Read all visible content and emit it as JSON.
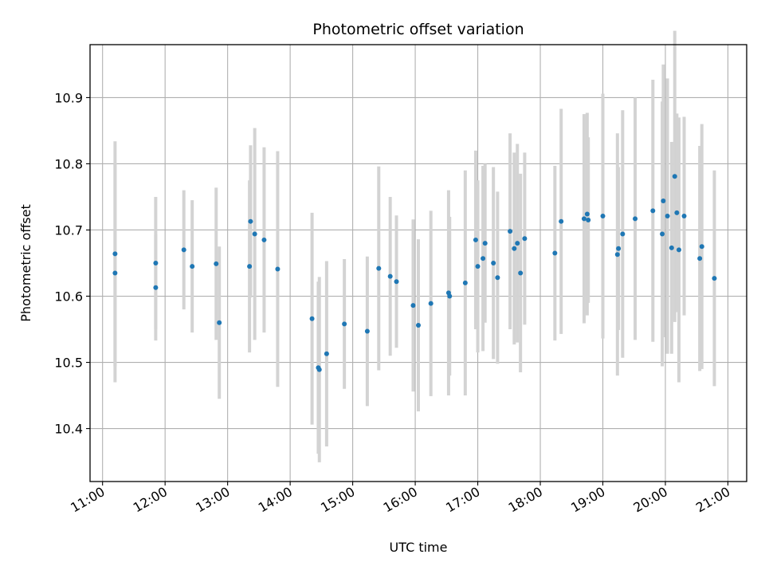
{
  "chart_data": {
    "type": "scatter",
    "title": "Photometric offset variation",
    "xlabel": "UTC time",
    "ylabel": "Photometric offset",
    "xlim": [
      "10:48",
      "21:18"
    ],
    "ylim": [
      10.32,
      10.98
    ],
    "x_ticks": [
      "11:00",
      "12:00",
      "13:00",
      "14:00",
      "15:00",
      "16:00",
      "17:00",
      "18:00",
      "19:00",
      "20:00",
      "21:00"
    ],
    "y_ticks": [
      10.4,
      10.5,
      10.6,
      10.7,
      10.8,
      10.9
    ],
    "grid": true,
    "point_color": "#1f77b4",
    "errorbar_color": "#d3d3d3",
    "series": [
      {
        "x": [
          "11:12",
          "11:12",
          "11:51",
          "11:51",
          "12:18",
          "12:26",
          "12:49",
          "12:52",
          "13:21",
          "13:22",
          "13:26",
          "13:35",
          "13:48",
          "14:21",
          "14:27",
          "14:28",
          "14:35",
          "14:52",
          "15:14",
          "15:25",
          "15:36",
          "15:42",
          "15:58",
          "16:03",
          "16:15",
          "16:32",
          "16:33",
          "16:48",
          "16:58",
          "17:00",
          "17:05",
          "17:07",
          "17:15",
          "17:19",
          "17:31",
          "17:35",
          "17:38",
          "17:41",
          "17:45",
          "18:14",
          "18:20",
          "18:42",
          "18:45",
          "18:46",
          "19:00",
          "19:14",
          "19:15",
          "19:19",
          "19:31",
          "19:48",
          "19:57",
          "19:58",
          "20:02",
          "20:06",
          "20:09",
          "20:11",
          "20:13",
          "20:18",
          "20:33",
          "20:35",
          "20:47"
        ],
        "y": [
          10.664,
          10.635,
          10.65,
          10.613,
          10.67,
          10.645,
          10.649,
          10.56,
          10.645,
          10.713,
          10.694,
          10.685,
          10.641,
          10.566,
          10.492,
          10.489,
          10.513,
          10.558,
          10.547,
          10.642,
          10.63,
          10.622,
          10.586,
          10.556,
          10.589,
          10.605,
          10.6,
          10.62,
          10.685,
          10.645,
          10.657,
          10.68,
          10.65,
          10.628,
          10.698,
          10.672,
          10.68,
          10.635,
          10.687,
          10.665,
          10.713,
          10.717,
          10.724,
          10.715,
          10.721,
          10.663,
          10.672,
          10.694,
          10.717,
          10.729,
          10.694,
          10.744,
          10.721,
          10.673,
          10.781,
          10.726,
          10.67,
          10.721,
          10.657,
          10.675,
          10.627
        ],
        "yerr": [
          0.17,
          0.165,
          0.1,
          0.08,
          0.09,
          0.1,
          0.115,
          0.115,
          0.13,
          0.115,
          0.16,
          0.14,
          0.178,
          0.16,
          0.13,
          0.14,
          0.14,
          0.098,
          0.113,
          0.154,
          0.12,
          0.1,
          0.13,
          0.13,
          0.14,
          0.155,
          0.12,
          0.17,
          0.135,
          0.13,
          0.14,
          0.12,
          0.145,
          0.13,
          0.148,
          0.145,
          0.15,
          0.15,
          0.13,
          0.132,
          0.17,
          0.158,
          0.153,
          0.125,
          0.185,
          0.183,
          0.123,
          0.187,
          0.183,
          0.198,
          0.2,
          0.206,
          0.208,
          0.16,
          0.22,
          0.15,
          0.2,
          0.15,
          0.17,
          0.185,
          0.163
        ]
      }
    ]
  }
}
